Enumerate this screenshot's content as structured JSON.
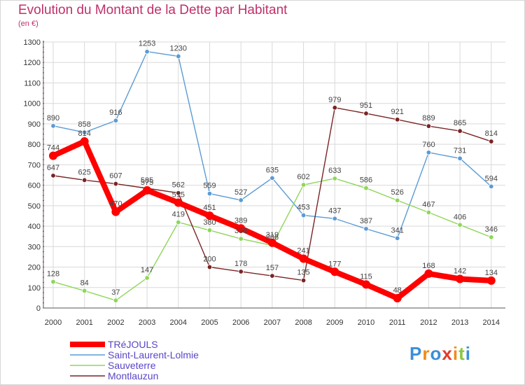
{
  "header": {
    "title": "Evolution du Montant de la Dette par Habitant",
    "subtitle": "(en €)"
  },
  "logo": {
    "text": "Proxiti"
  },
  "colors": {
    "title": "#c0306a",
    "grid": "#d9d9d9",
    "axis_tick_red": "#cc3333"
  },
  "chart_data": {
    "type": "line",
    "title": "Evolution du Montant de la Dette par Habitant",
    "subtitle": "(en €)",
    "xlabel": "",
    "ylabel": "",
    "x": [
      "2000",
      "2001",
      "2002",
      "2003",
      "2004",
      "2005",
      "2006",
      "2007",
      "2008",
      "2009",
      "2010",
      "2011",
      "2012",
      "2013",
      "2014"
    ],
    "ylim": [
      0,
      1300
    ],
    "yticks": [
      0,
      100,
      200,
      300,
      400,
      500,
      600,
      700,
      800,
      900,
      1000,
      1100,
      1200,
      1300
    ],
    "grid": true,
    "legend_position": "bottom-left",
    "series": [
      {
        "name": "TRéJOULS",
        "color": "#ff0000",
        "values": [
          744,
          814,
          470,
          575,
          515,
          451,
          389,
          319,
          241,
          177,
          115,
          48,
          168,
          142,
          134
        ]
      },
      {
        "name": "Saint-Laurent-Lolmie",
        "color": "#5b9bd5",
        "values": [
          890,
          858,
          916,
          1253,
          1230,
          559,
          527,
          635,
          453,
          437,
          387,
          341,
          760,
          731,
          594
        ]
      },
      {
        "name": "Sauveterre",
        "color": "#8fd65a",
        "values": [
          128,
          84,
          37,
          147,
          419,
          380,
          338,
          306,
          602,
          633,
          586,
          526,
          467,
          406,
          346
        ]
      },
      {
        "name": "Montlauzun",
        "color": "#7a2424",
        "values": [
          647,
          625,
          607,
          585,
          562,
          200,
          178,
          157,
          135,
          979,
          951,
          921,
          889,
          865,
          814
        ]
      }
    ]
  }
}
